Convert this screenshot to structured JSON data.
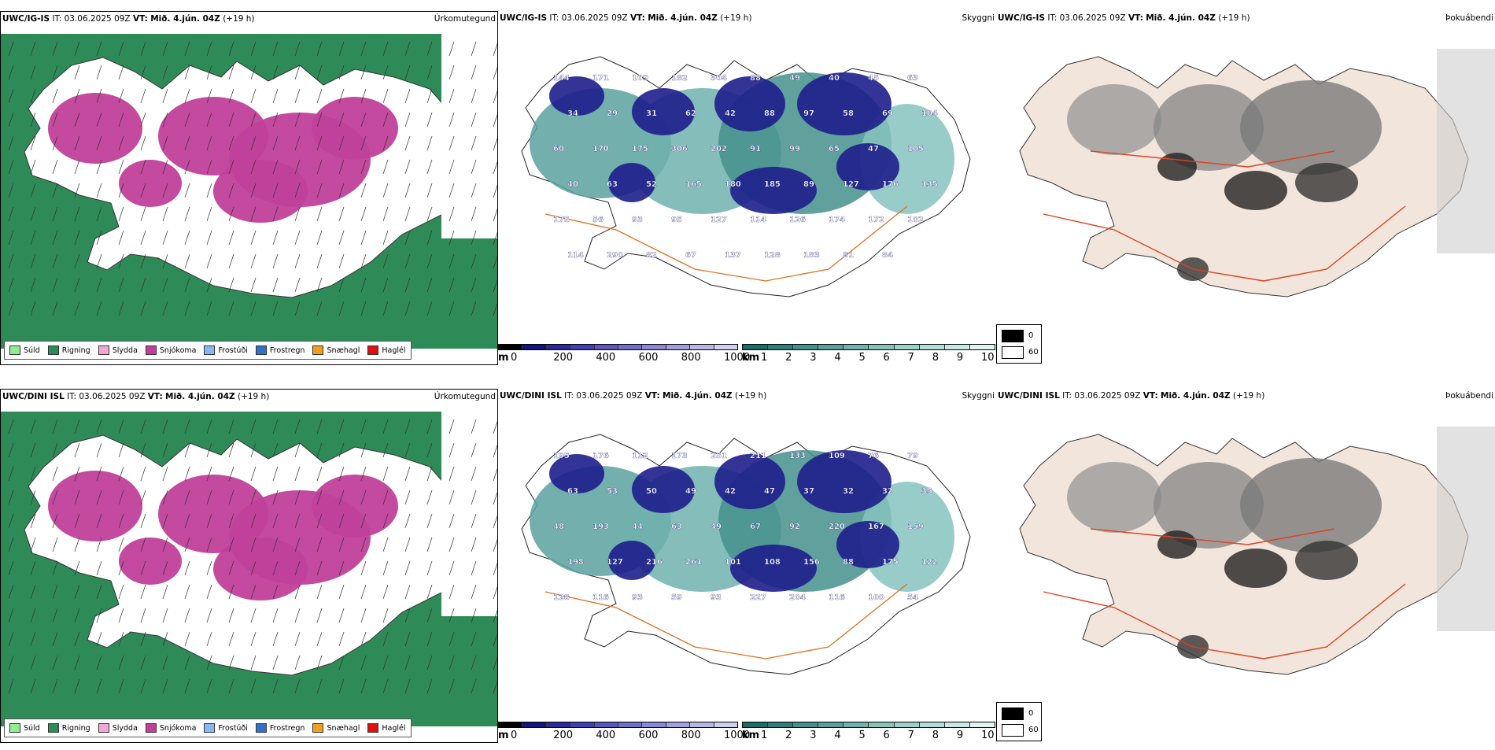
{
  "rows": [
    {
      "panels": [
        {
          "model": "UWC/IG-IS",
          "it_label": "IT:",
          "it_value": "03.06.2025 09Z",
          "vt_label": "VT:",
          "vt_value": "Mið. 4.jún. 04Z",
          "lead": "(+19 h)",
          "name": "Úrkomutegund"
        },
        {
          "model": "UWC/IG-IS",
          "it_label": "IT:",
          "it_value": "03.06.2025 09Z",
          "vt_label": "VT:",
          "vt_value": "Mið. 4.jún. 04Z",
          "lead": "(+19 h)",
          "name": "Skyggni"
        },
        {
          "model": "UWC/IG-IS",
          "it_label": "IT:",
          "it_value": "03.06.2025 09Z",
          "vt_label": "VT:",
          "vt_value": "Mið. 4.jún. 04Z",
          "lead": "(+19 h)",
          "name": "Þokuábendi"
        }
      ],
      "cloud_labels": [
        "144",
        "171",
        "109",
        "182",
        "304",
        "88",
        "49",
        "40",
        "45",
        "63",
        "34",
        "29",
        "31",
        "62",
        "42",
        "88",
        "97",
        "58",
        "69",
        "104",
        "60",
        "170",
        "175",
        "306",
        "202",
        "91",
        "99",
        "65",
        "47",
        "105",
        "40",
        "63",
        "52",
        "165",
        "180",
        "185",
        "89",
        "127",
        "176",
        "135",
        "175",
        "56",
        "93",
        "95",
        "127",
        "114",
        "126",
        "174",
        "172",
        "102",
        "114",
        "290",
        "82",
        "67",
        "137",
        "128",
        "183",
        "81",
        "84"
      ]
    },
    {
      "panels": [
        {
          "model": "UWC/DINI ISL",
          "it_label": "IT:",
          "it_value": "03.06.2025 09Z",
          "vt_label": "VT:",
          "vt_value": "Mið. 4.jún. 04Z",
          "lead": "(+19 h)",
          "name": "Úrkomutegund"
        },
        {
          "model": "UWC/DINI ISL",
          "it_label": "IT:",
          "it_value": "03.06.2025 09Z",
          "vt_label": "VT:",
          "vt_value": "Mið. 4.jún. 04Z",
          "lead": "(+19 h)",
          "name": "Skyggni"
        },
        {
          "model": "UWC/DINI ISL",
          "it_label": "IT:",
          "it_value": "03.06.2025 09Z",
          "vt_label": "VT:",
          "vt_value": "Mið. 4.jún. 04Z",
          "lead": "(+19 h)",
          "name": "Þokuábendi"
        }
      ],
      "cloud_labels": [
        "195",
        "176",
        "112",
        "173",
        "251",
        "211",
        "133",
        "109",
        "76",
        "79",
        "63",
        "53",
        "50",
        "49",
        "42",
        "47",
        "37",
        "32",
        "32",
        "35",
        "48",
        "193",
        "44",
        "63",
        "49",
        "67",
        "92",
        "220",
        "167",
        "159",
        "198",
        "127",
        "216",
        "261",
        "101",
        "108",
        "156",
        "88",
        "175",
        "122",
        "128",
        "116",
        "93",
        "59",
        "93",
        "227",
        "204",
        "116",
        "100",
        "54"
      ]
    }
  ],
  "precip_legend": [
    {
      "label": "Súld",
      "color": "#90ee90"
    },
    {
      "label": "Rigning",
      "color": "#2e8b57"
    },
    {
      "label": "Slydda",
      "color": "#f4a6d7"
    },
    {
      "label": "Snjókoma",
      "color": "#c0409a"
    },
    {
      "label": "Frostúði",
      "color": "#87b8f0"
    },
    {
      "label": "Frostregn",
      "color": "#3070c8"
    },
    {
      "label": "Snæhagl",
      "color": "#f0a020"
    },
    {
      "label": "Haglél",
      "color": "#e01010"
    }
  ],
  "cloud_scale": {
    "unit": "m",
    "ticks": [
      "0",
      "200",
      "400",
      "600",
      "800",
      "1000"
    ],
    "colors": [
      "#000000",
      "#141480",
      "#2a2a9c",
      "#4040b0",
      "#5858bc",
      "#7070c8",
      "#8888d4",
      "#a0a0dc",
      "#b8b8e6",
      "#d0d0f0"
    ]
  },
  "vis_scale": {
    "unit": "km",
    "ticks": [
      "1",
      "2",
      "3",
      "4",
      "5",
      "6",
      "7",
      "8",
      "9",
      "10"
    ],
    "colors": [
      "#1a6e6a",
      "#2f7f7b",
      "#44908c",
      "#5aa19d",
      "#70b2ae",
      "#86c3bf",
      "#9cd0cc",
      "#b3ddd9",
      "#cae9e6",
      "#e2f4f2"
    ]
  },
  "fog_legend": {
    "black_label": "0",
    "white_label": "60"
  }
}
